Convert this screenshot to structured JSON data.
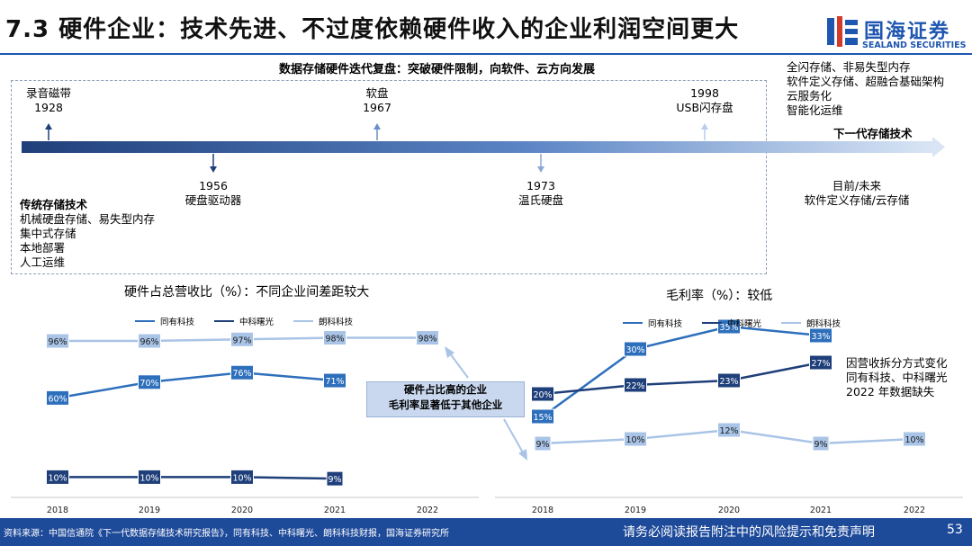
{
  "header": {
    "title": "7.3 硬件企业：技术先进、不过度依赖硬件收入的企业利润空间更大",
    "logo_cn": "国海证券",
    "logo_en": "SEALAND SECURITIES"
  },
  "timeline": {
    "heading": "数据存储硬件迭代复盘：突破硬件限制，向软件、云方向发展",
    "events_top": [
      {
        "name": "录音磁带",
        "year": "1928"
      },
      {
        "name": "软盘",
        "year": "1967"
      },
      {
        "name": "USB闪存盘",
        "year": "1998"
      }
    ],
    "events_bottom": [
      {
        "year": "1956",
        "name": "硬盘驱动器"
      },
      {
        "year": "1973",
        "name": "温氏硬盘"
      }
    ],
    "traditional": {
      "title": "传统存储技术",
      "items": [
        "机械硬盘存储、易失型内存",
        "集中式存储",
        "本地部署",
        "人工运维"
      ]
    },
    "next_gen": {
      "items": [
        "全闪存储、非易失型内存",
        "软件定义存储、超融合基础架构",
        "云服务化",
        "智能化运维"
      ],
      "label": "下一代存储技术",
      "future_title": "目前/未来",
      "future_desc": "软件定义存储/云存储"
    }
  },
  "callout": {
    "line1": "硬件占比高的企业",
    "line2": "毛利率显著低于其他企业"
  },
  "note": {
    "lines": [
      "因营收拆分方式变化",
      "同有科技、中科曙光",
      "2022 年数据缺失"
    ]
  },
  "chart_data": [
    {
      "type": "line",
      "title": "硬件占总营收比（%）：不同企业间差距较大",
      "categories": [
        "2018",
        "2019",
        "2020",
        "2021",
        "2022"
      ],
      "ylim": [
        0,
        100
      ],
      "series": [
        {
          "name": "同有科技",
          "color": "#2e6fbc",
          "values": [
            60,
            70,
            76,
            71,
            null
          ],
          "labels": [
            "60%",
            "70%",
            "76%",
            "71%",
            ""
          ]
        },
        {
          "name": "中科曙光",
          "color": "#1f3f7a",
          "values": [
            10,
            10,
            10,
            9,
            null
          ],
          "labels": [
            "10%",
            "10%",
            "10%",
            "9%",
            ""
          ]
        },
        {
          "name": "朗科科技",
          "color": "#a9c4e6",
          "values": [
            96,
            96,
            97,
            98,
            98
          ],
          "labels": [
            "96%",
            "96%",
            "97%",
            "98%",
            "98%"
          ]
        }
      ]
    },
    {
      "type": "line",
      "title": "毛利率（%）：较低",
      "categories": [
        "2018",
        "2019",
        "2020",
        "2021",
        "2022"
      ],
      "ylim": [
        0,
        40
      ],
      "series": [
        {
          "name": "同有科技",
          "color": "#2e6fbc",
          "values": [
            15,
            30,
            35,
            33,
            null
          ],
          "labels": [
            "15%",
            "30%",
            "35%",
            "33%",
            ""
          ]
        },
        {
          "name": "中科曙光",
          "color": "#1f3f7a",
          "values": [
            20,
            22,
            23,
            27,
            null
          ],
          "labels": [
            "20%",
            "22%",
            "23%",
            "27%",
            ""
          ]
        },
        {
          "name": "朗科科技",
          "color": "#a9c4e6",
          "values": [
            9,
            10,
            12,
            9,
            10
          ],
          "labels": [
            "9%",
            "10%",
            "12%",
            "9%",
            "10%"
          ]
        }
      ]
    }
  ],
  "footer": {
    "source": "资料来源：中国信通院《下一代数据存储技术研究报告》，同有科技、中科曙光、朗科科技财报，国海证券研究所",
    "disclaimer": "请务必阅读报告附注中的风险提示和免责声明",
    "page": "53"
  }
}
